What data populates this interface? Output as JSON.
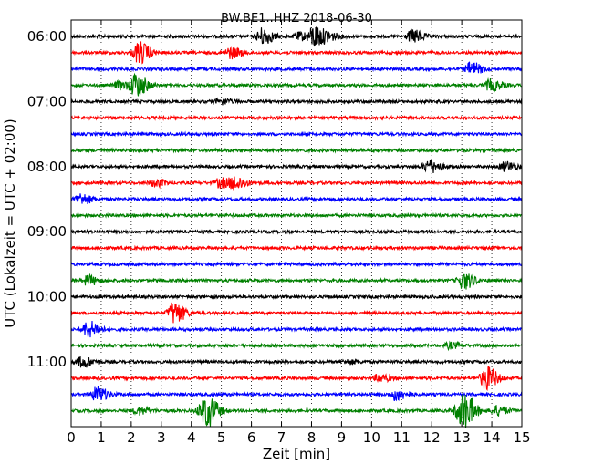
{
  "chart_data": {
    "type": "line",
    "title": "BW.BE1..HHZ 2018-06-30",
    "xlabel": "Zeit  [min]",
    "ylabel": "UTC (Lokalzeit = UTC + 02:00)",
    "xlim": [
      0,
      15
    ],
    "x_ticks": [
      "0",
      "1",
      "2",
      "3",
      "4",
      "5",
      "6",
      "7",
      "8",
      "9",
      "10",
      "11",
      "12",
      "13",
      "14",
      "15"
    ],
    "y_tick_labels": [
      "06:00",
      "07:00",
      "08:00",
      "09:00",
      "10:00",
      "11:00"
    ],
    "trace_interval_min": 15,
    "colors": [
      "#000000",
      "#ff0000",
      "#0000ff",
      "#008000"
    ],
    "grid": true,
    "series": [
      {
        "time": "06:00",
        "events": [
          [
            6.35,
            9
          ],
          [
            8.1,
            12
          ],
          [
            7.6,
            4
          ],
          [
            8.6,
            3
          ],
          [
            11.35,
            7
          ]
        ]
      },
      {
        "time": "06:15",
        "events": [
          [
            2.25,
            12
          ],
          [
            5.3,
            6
          ]
        ]
      },
      {
        "time": "06:30",
        "events": [
          [
            13.3,
            7
          ]
        ]
      },
      {
        "time": "06:45",
        "events": [
          [
            2.15,
            13
          ],
          [
            1.6,
            4
          ],
          [
            13.95,
            6
          ]
        ]
      },
      {
        "time": "07:00",
        "events": [
          [
            4.95,
            3
          ]
        ]
      },
      {
        "time": "07:15",
        "events": []
      },
      {
        "time": "07:30",
        "events": []
      },
      {
        "time": "07:45",
        "events": []
      },
      {
        "time": "08:00",
        "events": [
          [
            11.9,
            7
          ],
          [
            14.45,
            5
          ]
        ]
      },
      {
        "time": "08:15",
        "events": [
          [
            2.8,
            4
          ],
          [
            5.45,
            7
          ],
          [
            4.95,
            5
          ]
        ]
      },
      {
        "time": "08:30",
        "events": [
          [
            0.3,
            6
          ]
        ]
      },
      {
        "time": "08:45",
        "events": []
      },
      {
        "time": "09:00",
        "events": []
      },
      {
        "time": "09:15",
        "events": []
      },
      {
        "time": "09:30",
        "events": []
      },
      {
        "time": "09:45",
        "events": [
          [
            0.55,
            5
          ],
          [
            13.05,
            9
          ]
        ]
      },
      {
        "time": "10:00",
        "events": []
      },
      {
        "time": "10:15",
        "events": [
          [
            3.4,
            12
          ]
        ]
      },
      {
        "time": "10:30",
        "events": [
          [
            0.55,
            9
          ]
        ]
      },
      {
        "time": "10:45",
        "events": [
          [
            12.6,
            3
          ]
        ]
      },
      {
        "time": "11:00",
        "events": [
          [
            0.35,
            6
          ],
          [
            9.2,
            2
          ]
        ]
      },
      {
        "time": "11:15",
        "events": [
          [
            13.8,
            13
          ],
          [
            10.25,
            4
          ]
        ]
      },
      {
        "time": "11:30",
        "events": [
          [
            0.85,
            8
          ],
          [
            10.8,
            6
          ]
        ]
      },
      {
        "time": "11:45",
        "events": [
          [
            4.55,
            12
          ],
          [
            4.35,
            7
          ],
          [
            12.9,
            9
          ],
          [
            13.1,
            14
          ],
          [
            14.15,
            5
          ],
          [
            2.25,
            4
          ]
        ]
      }
    ]
  }
}
